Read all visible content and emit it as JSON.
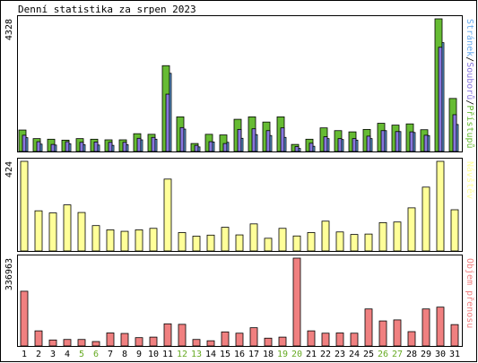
{
  "title": "Denní statistika za srpen 2023",
  "colors": {
    "bg": "#ffffff",
    "frame": "#000000",
    "pages": "#66aaee",
    "files": "#8877dd",
    "hits": "#66bb33",
    "visits": "#ffff99",
    "traffic": "#f08080",
    "weekend_label": "#66aa22"
  },
  "chart_data": [
    {
      "type": "bar",
      "name": "hits-files-pages",
      "categories": [
        "1",
        "2",
        "3",
        "4",
        "5",
        "6",
        "7",
        "8",
        "9",
        "10",
        "11",
        "12",
        "13",
        "14",
        "15",
        "16",
        "17",
        "18",
        "19",
        "20",
        "21",
        "22",
        "23",
        "24",
        "25",
        "26",
        "27",
        "28",
        "29",
        "30",
        "31"
      ],
      "weekend_days": [
        "5",
        "6",
        "12",
        "13",
        "19",
        "20",
        "26",
        "27"
      ],
      "ymax_label": "4328",
      "ylim": [
        0,
        4328
      ],
      "series": [
        {
          "name": "Přístupů",
          "color": "#66bb33",
          "values": [
            700,
            420,
            400,
            370,
            420,
            400,
            380,
            380,
            580,
            560,
            2800,
            1130,
            260,
            560,
            540,
            1050,
            1130,
            960,
            1130,
            230,
            400,
            770,
            680,
            640,
            720,
            920,
            860,
            900,
            710,
            4328,
            1730
          ]
        },
        {
          "name": "Souborů",
          "color": "#8877dd",
          "values": [
            530,
            320,
            230,
            320,
            300,
            310,
            300,
            300,
            430,
            460,
            1870,
            780,
            200,
            320,
            260,
            720,
            740,
            680,
            770,
            160,
            270,
            480,
            420,
            420,
            500,
            680,
            650,
            640,
            530,
            3400,
            1200
          ]
        },
        {
          "name": "Stránek",
          "color": "#66aaee",
          "values": [
            450,
            240,
            210,
            250,
            220,
            210,
            200,
            220,
            380,
            400,
            2550,
            730,
            150,
            310,
            300,
            430,
            550,
            520,
            460,
            100,
            170,
            420,
            390,
            370,
            420,
            680,
            650,
            620,
            520,
            3550,
            880
          ]
        }
      ],
      "legend_labels": [
        "Stránek",
        "Souborů",
        "Přístupů"
      ],
      "legend_sep": "/"
    },
    {
      "type": "bar",
      "name": "visits",
      "ymax_label": "424",
      "ylim": [
        0,
        424
      ],
      "series": [
        {
          "name": "Návštěv",
          "color": "#ffff99",
          "values": [
            424,
            190,
            180,
            218,
            182,
            120,
            100,
            93,
            100,
            107,
            340,
            87,
            70,
            75,
            112,
            76,
            128,
            60,
            107,
            71,
            87,
            141,
            90,
            78,
            80,
            134,
            137,
            204,
            302,
            424,
            195
          ]
        }
      ],
      "legend_labels": [
        "Návštěv"
      ]
    },
    {
      "type": "bar",
      "name": "traffic",
      "ymax_label": "336963",
      "ylim": [
        0,
        336963
      ],
      "series": [
        {
          "name": "Objem přenosu",
          "color": "#f08080",
          "values": [
            210000,
            58000,
            23000,
            25000,
            25000,
            17000,
            50000,
            48000,
            32000,
            34000,
            85000,
            83000,
            25000,
            20000,
            54000,
            49000,
            70000,
            30000,
            34000,
            336963,
            58000,
            49000,
            50000,
            49000,
            142000,
            96000,
            100000,
            55000,
            142000,
            149000,
            82000
          ]
        }
      ],
      "legend_labels": [
        "Objem přenosu"
      ]
    }
  ]
}
